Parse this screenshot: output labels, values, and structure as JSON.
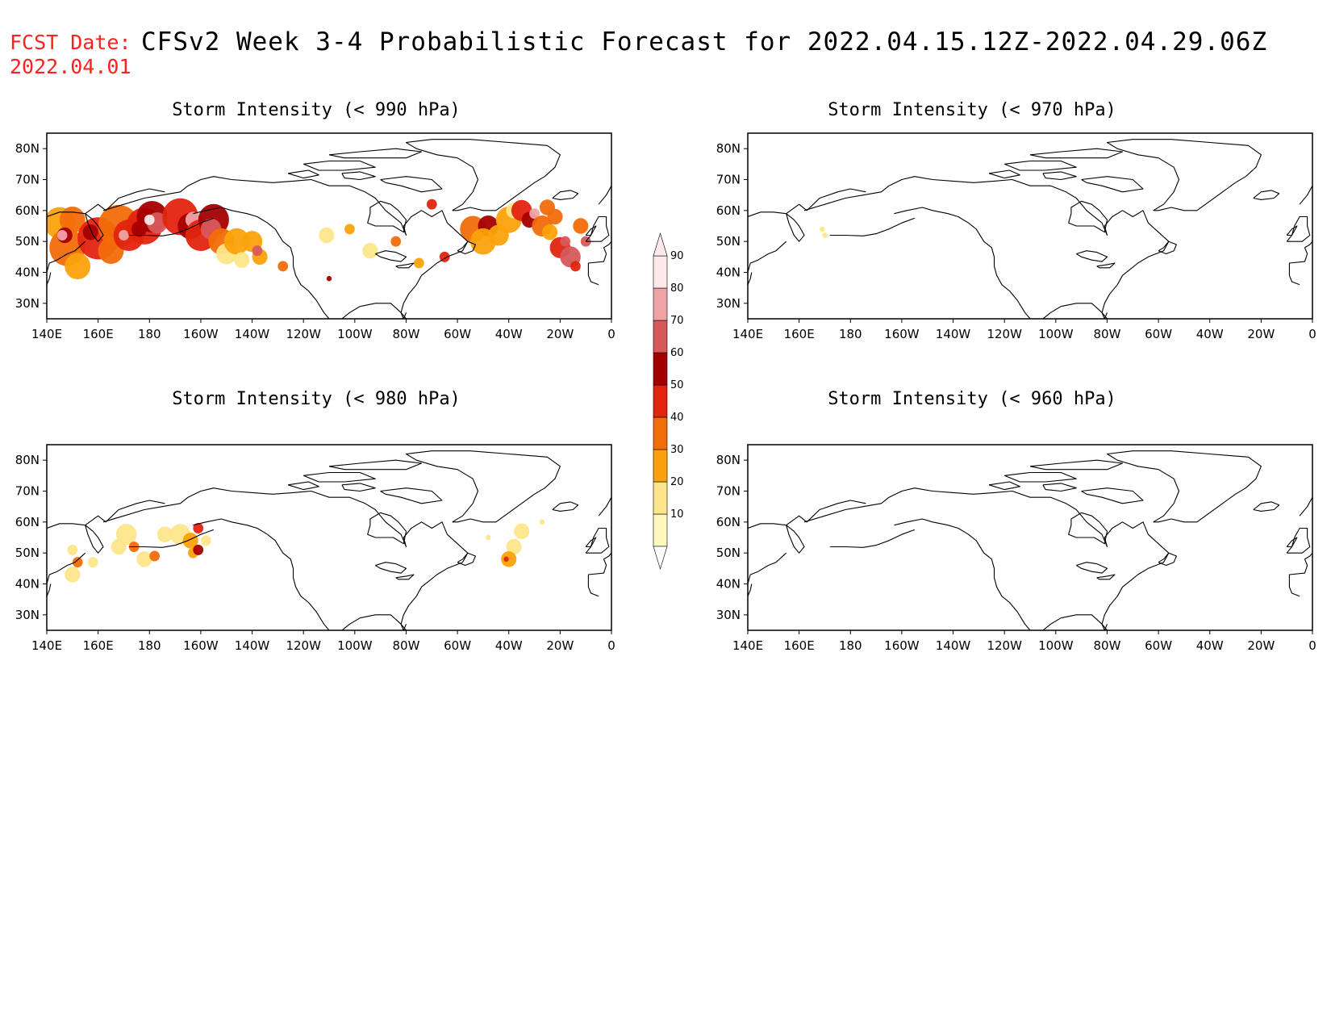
{
  "header": {
    "fcst_label": "FCST Date:",
    "fcst_date": "2022.04.01",
    "title": "CFSv2 Week 3-4 Probabilistic Forecast for 2022.04.15.12Z-2022.04.29.06Z"
  },
  "axes": {
    "lon_labels": [
      "140E",
      "160E",
      "180",
      "160W",
      "140W",
      "120W",
      "100W",
      "80W",
      "60W",
      "40W",
      "20W",
      "0"
    ],
    "lat_labels": [
      "80N",
      "70N",
      "60N",
      "50N",
      "40N",
      "30N"
    ]
  },
  "panels": [
    {
      "id": "p990",
      "title": "Storm Intensity (< 990 hPa)"
    },
    {
      "id": "p970",
      "title": "Storm Intensity (< 970 hPa)"
    },
    {
      "id": "p980",
      "title": "Storm Intensity (< 980 hPa)"
    },
    {
      "id": "p960",
      "title": "Storm Intensity (< 960 hPa)"
    }
  ],
  "colorbar": {
    "levels": [
      "10",
      "20",
      "30",
      "40",
      "50",
      "60",
      "70",
      "80",
      "90"
    ],
    "colors": [
      "#fff9c0",
      "#fde68a",
      "#fba20b",
      "#f26d0a",
      "#e2240f",
      "#a50000",
      "#d8595a",
      "#f0a3a6",
      "#fde8ea"
    ]
  }
}
